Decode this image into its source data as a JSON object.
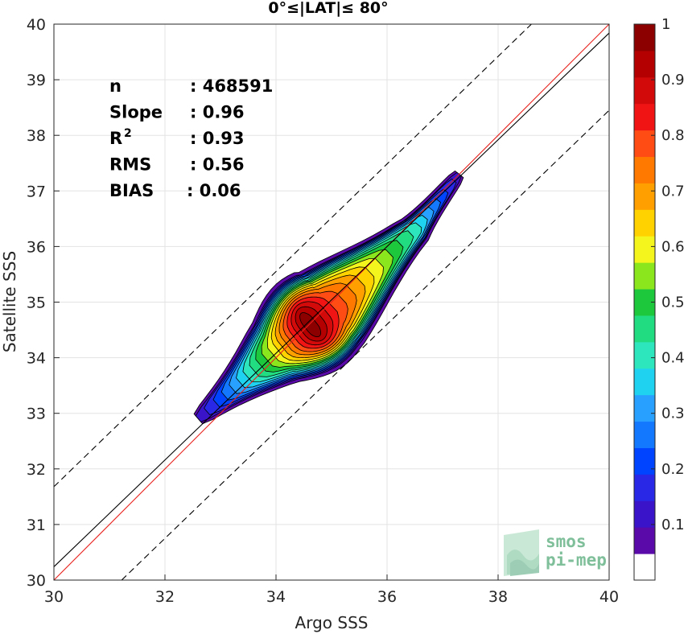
{
  "chart_data": {
    "type": "contour",
    "title": "0°≤|LAT|≤ 80°",
    "xlabel": "Argo SSS",
    "ylabel": "Satellite SSS",
    "xlim": [
      30,
      40
    ],
    "ylim": [
      30,
      40
    ],
    "x_ticks": [
      "30",
      "32",
      "34",
      "36",
      "38",
      "40"
    ],
    "y_ticks": [
      "30",
      "31",
      "32",
      "33",
      "34",
      "35",
      "36",
      "37",
      "38",
      "39",
      "40"
    ],
    "grid": true,
    "stats": [
      {
        "label": "n",
        "value": ": 468591"
      },
      {
        "label": "Slope",
        "value": ": 0.96"
      },
      {
        "label": "R",
        "sup": "2",
        "value": ": 0.93"
      },
      {
        "label": "RMS",
        "value": ": 0.56"
      },
      {
        "label": "BIAS",
        "value": ": 0.06"
      }
    ],
    "lines": [
      {
        "role": "one-to-one",
        "color": "#e8211c",
        "x": [
          30,
          40
        ],
        "y": [
          30,
          40
        ]
      },
      {
        "role": "regression",
        "color": "#000000",
        "x": [
          30,
          40
        ],
        "y": [
          30.24,
          39.84
        ]
      },
      {
        "role": "upper-bound",
        "color": "#000000",
        "dashed": true,
        "x": [
          30,
          38.6
        ],
        "y": [
          31.68,
          40
        ]
      },
      {
        "role": "lower-bound",
        "color": "#000000",
        "dashed": true,
        "x": [
          31.22,
          40
        ],
        "y": [
          30,
          38.45
        ]
      }
    ],
    "density": {
      "core": [
        [
          32.6,
          32.9
        ],
        [
          34.0,
          34.1
        ],
        [
          35.0,
          34.9
        ],
        [
          36.5,
          36.3
        ],
        [
          37.3,
          37.3
        ]
      ],
      "levels": [
        0.05,
        0.1,
        0.2,
        0.3,
        0.4,
        0.5,
        0.6,
        0.7,
        0.8,
        0.9,
        1.0
      ]
    },
    "colorbar": {
      "min": 0,
      "max": 1,
      "ticks": [
        "0.1",
        "0.2",
        "0.3",
        "0.4",
        "0.5",
        "0.6",
        "0.7",
        "0.8",
        "0.9",
        "1"
      ],
      "colors": [
        "#ffffff",
        "#5a0aa8",
        "#3a14c8",
        "#2828e6",
        "#0044ff",
        "#1478ff",
        "#28a0ff",
        "#1ed2f0",
        "#2ee6be",
        "#22dc82",
        "#1ec83c",
        "#8ce61e",
        "#f5f51e",
        "#ffd200",
        "#ffa000",
        "#ff7800",
        "#ff4b14",
        "#f01414",
        "#d20a0a",
        "#b40000",
        "#8c0000"
      ]
    },
    "watermark": [
      "smos",
      "pi-mep"
    ]
  }
}
